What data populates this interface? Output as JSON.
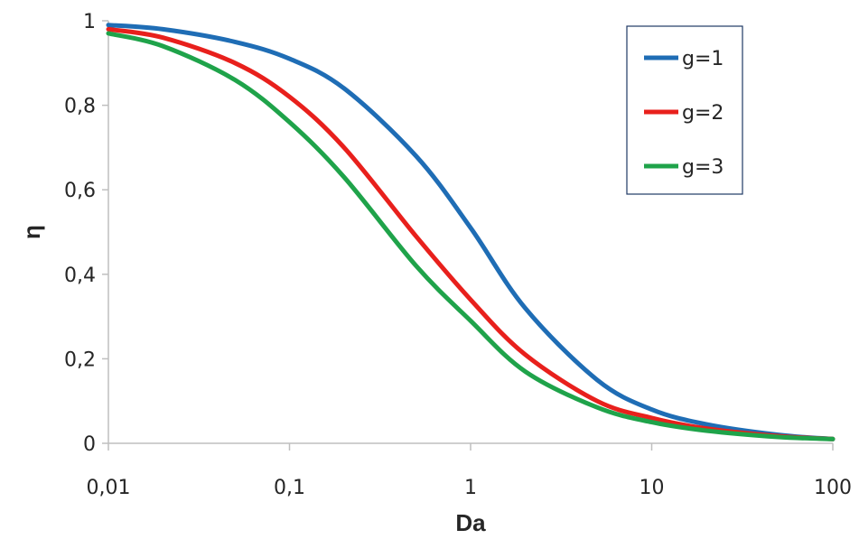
{
  "chart_data": {
    "type": "line",
    "xlabel": "Da",
    "ylabel": "η",
    "xscale": "log",
    "xlim": [
      0.01,
      100
    ],
    "ylim": [
      0,
      1
    ],
    "x_ticks": [
      0.01,
      0.1,
      1,
      10,
      100
    ],
    "x_tick_labels": [
      "0,01",
      "0,1",
      "1",
      "10",
      "100"
    ],
    "y_ticks": [
      0,
      0.2,
      0.4,
      0.6,
      0.8,
      1
    ],
    "y_tick_labels": [
      "0",
      "0,2",
      "0,4",
      "0,6",
      "0,8",
      "1"
    ],
    "grid": false,
    "legend_position": "top-right",
    "x": [
      0.01,
      0.02,
      0.05,
      0.1,
      0.2,
      0.5,
      1,
      2,
      5,
      10,
      20,
      50,
      100
    ],
    "series": [
      {
        "name": "g=1",
        "color": "#1f6db5",
        "values": [
          0.99,
          0.98,
          0.95,
          0.91,
          0.84,
          0.68,
          0.51,
          0.32,
          0.15,
          0.08,
          0.045,
          0.02,
          0.01
        ]
      },
      {
        "name": "g=2",
        "color": "#e8201c",
        "values": [
          0.98,
          0.96,
          0.9,
          0.82,
          0.7,
          0.49,
          0.34,
          0.21,
          0.1,
          0.06,
          0.035,
          0.017,
          0.01
        ]
      },
      {
        "name": "g=3",
        "color": "#1fa34a",
        "values": [
          0.97,
          0.94,
          0.86,
          0.76,
          0.63,
          0.42,
          0.29,
          0.17,
          0.085,
          0.05,
          0.03,
          0.015,
          0.01
        ]
      }
    ]
  }
}
